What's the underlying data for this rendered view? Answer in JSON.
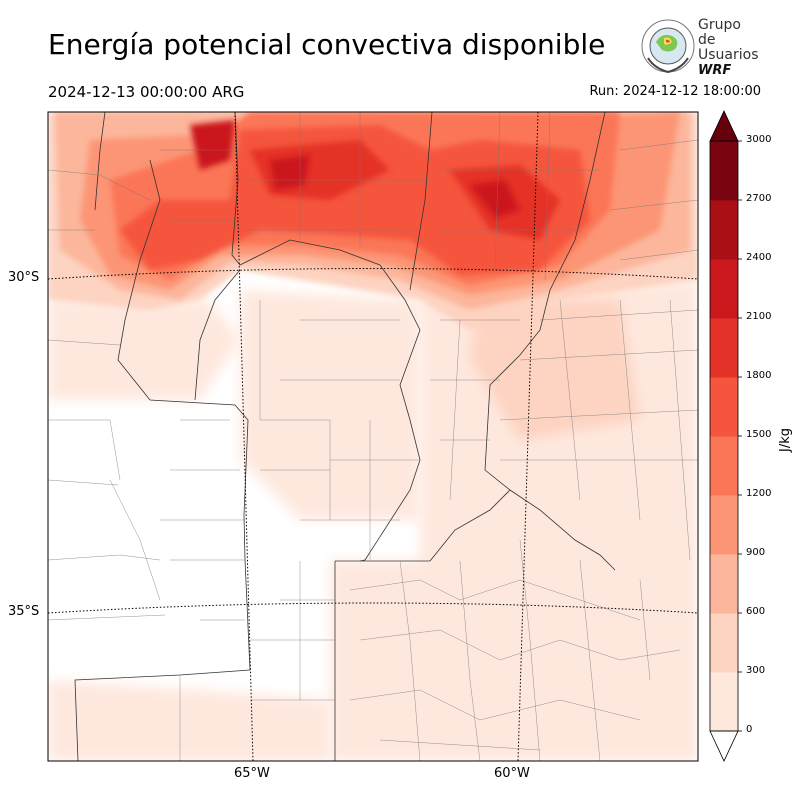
{
  "header": {
    "title": "Energía potencial convectiva disponible",
    "valid_time": "2024-12-13 00:00:00 ARG",
    "run_time": "Run: 2024-12-12 18:00:00"
  },
  "logo": {
    "line1": "Grupo de",
    "line2": "Usuarios",
    "line3": "WRF"
  },
  "axes": {
    "lat_labels": [
      "30°S",
      "35°S"
    ],
    "lon_labels": [
      "65°W",
      "60°W"
    ]
  },
  "colorbar": {
    "unit": "J/kg",
    "ticks": [
      "0",
      "300",
      "600",
      "900",
      "1200",
      "1500",
      "1800",
      "2100",
      "2400",
      "2700",
      "3000"
    ],
    "colors": [
      "#fee8de",
      "#fdd3c1",
      "#fcb69b",
      "#fc9575",
      "#fb7656",
      "#f5553c",
      "#e53228",
      "#ca181d",
      "#a90f15",
      "#7a0510"
    ],
    "extend": "both"
  }
}
